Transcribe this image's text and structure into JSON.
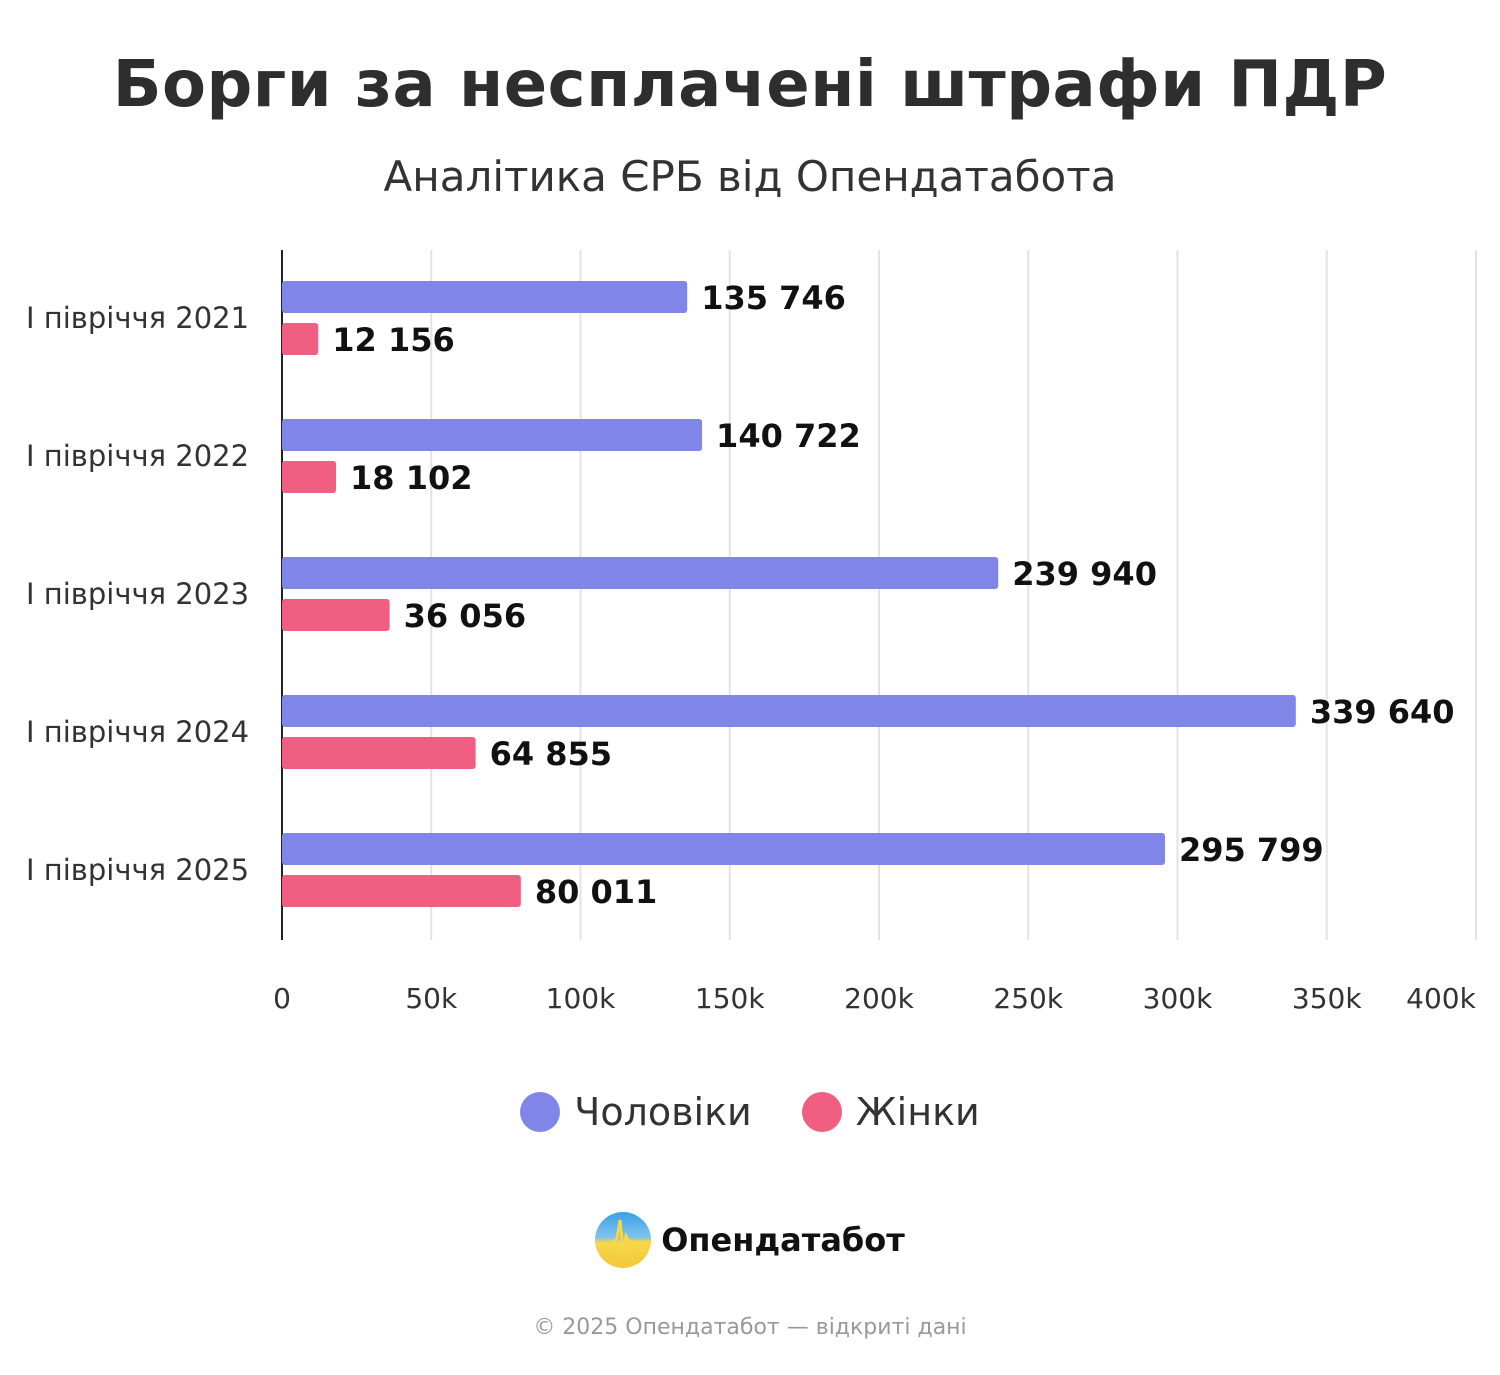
{
  "chart_data": {
    "type": "bar",
    "orientation": "horizontal",
    "title": "Борги за несплачені штрафи ПДР",
    "subtitle": "Аналітика ЄРБ від Опендатабота",
    "categories": [
      "I півріччя 2021",
      "I півріччя 2022",
      "I півріччя 2023",
      "I півріччя 2024",
      "I півріччя 2025"
    ],
    "series": [
      {
        "name": "Чоловіки",
        "color": "#8085e8",
        "values": [
          135746,
          140722,
          239940,
          339640,
          295799
        ],
        "labels": [
          "135 746",
          "140 722",
          "239 940",
          "339 640",
          "295 799"
        ]
      },
      {
        "name": "Жінки",
        "color": "#f05f82",
        "values": [
          12156,
          18102,
          36056,
          64855,
          80011
        ],
        "labels": [
          "12 156",
          "18 102",
          "36 056",
          "64 855",
          "80 011"
        ]
      }
    ],
    "xlim": [
      0,
      400000
    ],
    "x_ticks": [
      0,
      50000,
      100000,
      150000,
      200000,
      250000,
      300000,
      350000,
      400000
    ],
    "x_tick_labels": [
      "0",
      "50k",
      "100k",
      "150k",
      "200k",
      "250k",
      "300k",
      "350k",
      "400k"
    ],
    "grid": true,
    "legend_position": "bottom"
  },
  "brand": {
    "name": "Опендатабот",
    "footer": "© 2025 Опендатабот — відкриті дані"
  }
}
